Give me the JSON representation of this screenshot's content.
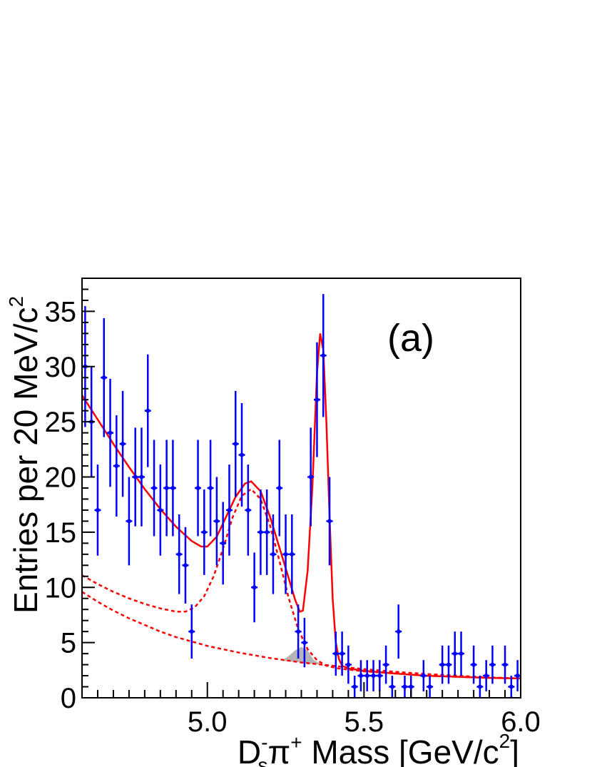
{
  "chart_data": {
    "type": "scatter",
    "panel_label": "(a)",
    "xlabel": {
      "main": "D",
      "sup": "-",
      "sub": "s",
      "pi": "π",
      "pi_sup": "+",
      "rest": " Mass [GeV/c",
      "rest_sup": "2",
      "close": "]"
    },
    "ylabel": {
      "main": "Entries per 20 MeV/c",
      "sup": "2"
    },
    "xlim": [
      4.6,
      6.0
    ],
    "ylim": [
      0,
      38
    ],
    "x_ticks": [
      5.0,
      5.5,
      6.0
    ],
    "x_tick_labels": [
      "5.0",
      "5.5",
      "6.0"
    ],
    "y_ticks": [
      0,
      5,
      10,
      15,
      20,
      25,
      30,
      35
    ],
    "y_tick_labels": [
      "0",
      "5",
      "10",
      "15",
      "20",
      "25",
      "30",
      "35"
    ],
    "grid": false,
    "colors": {
      "data": "#0000ff",
      "fit": "#ff0000",
      "shaded": "#b4b4b4",
      "axes": "#000000"
    },
    "series": [
      {
        "style": "points-with-errors",
        "points": [
          [
            4.61,
            30
          ],
          [
            4.63,
            25
          ],
          [
            4.65,
            17
          ],
          [
            4.67,
            29
          ],
          [
            4.69,
            24
          ],
          [
            4.71,
            21
          ],
          [
            4.73,
            23
          ],
          [
            4.75,
            16
          ],
          [
            4.77,
            20
          ],
          [
            4.79,
            20
          ],
          [
            4.81,
            26
          ],
          [
            4.83,
            19
          ],
          [
            4.85,
            17
          ],
          [
            4.87,
            19
          ],
          [
            4.89,
            19
          ],
          [
            4.91,
            13
          ],
          [
            4.93,
            12
          ],
          [
            4.95,
            6
          ],
          [
            4.97,
            19
          ],
          [
            4.99,
            15
          ],
          [
            5.01,
            19
          ],
          [
            5.03,
            16
          ],
          [
            5.05,
            14
          ],
          [
            5.07,
            17
          ],
          [
            5.09,
            23
          ],
          [
            5.11,
            22
          ],
          [
            5.13,
            17
          ],
          [
            5.15,
            10
          ],
          [
            5.17,
            15
          ],
          [
            5.19,
            15
          ],
          [
            5.21,
            13
          ],
          [
            5.23,
            19
          ],
          [
            5.25,
            13
          ],
          [
            5.27,
            13
          ],
          [
            5.29,
            6
          ],
          [
            5.31,
            5
          ],
          [
            5.33,
            20
          ],
          [
            5.35,
            27
          ],
          [
            5.37,
            31
          ],
          [
            5.39,
            16
          ],
          [
            5.41,
            4
          ],
          [
            5.43,
            4
          ],
          [
            5.45,
            3
          ],
          [
            5.47,
            1
          ],
          [
            5.49,
            2
          ],
          [
            5.51,
            2
          ],
          [
            5.53,
            2
          ],
          [
            5.55,
            2
          ],
          [
            5.57,
            3
          ],
          [
            5.59,
            1
          ],
          [
            5.61,
            6
          ],
          [
            5.63,
            1
          ],
          [
            5.65,
            1
          ],
          [
            5.69,
            2
          ],
          [
            5.71,
            1
          ],
          [
            5.75,
            3
          ],
          [
            5.77,
            3
          ],
          [
            5.79,
            4
          ],
          [
            5.81,
            4
          ],
          [
            5.85,
            3
          ],
          [
            5.87,
            1
          ],
          [
            5.89,
            2
          ],
          [
            5.91,
            3
          ],
          [
            5.95,
            3
          ],
          [
            5.97,
            1
          ],
          [
            5.99,
            2
          ]
        ]
      },
      {
        "style": "solid-line",
        "points": [
          [
            4.6,
            27.4
          ],
          [
            4.65,
            25.2
          ],
          [
            4.7,
            23.0
          ],
          [
            4.75,
            20.9
          ],
          [
            4.8,
            18.9
          ],
          [
            4.85,
            17.1
          ],
          [
            4.9,
            15.5
          ],
          [
            4.95,
            14.2
          ],
          [
            4.98,
            13.7
          ],
          [
            5.0,
            13.7
          ],
          [
            5.03,
            14.6
          ],
          [
            5.06,
            16.4
          ],
          [
            5.09,
            18.2
          ],
          [
            5.12,
            19.4
          ],
          [
            5.14,
            19.6
          ],
          [
            5.17,
            18.7
          ],
          [
            5.2,
            16.4
          ],
          [
            5.23,
            13.6
          ],
          [
            5.26,
            10.8
          ],
          [
            5.28,
            8.9
          ],
          [
            5.295,
            7.8
          ],
          [
            5.305,
            7.9
          ],
          [
            5.32,
            11.5
          ],
          [
            5.335,
            19.0
          ],
          [
            5.35,
            29.5
          ],
          [
            5.36,
            33.0
          ],
          [
            5.37,
            31.5
          ],
          [
            5.38,
            25.0
          ],
          [
            5.39,
            16.5
          ],
          [
            5.4,
            9.0
          ],
          [
            5.41,
            5.0
          ],
          [
            5.42,
            3.5
          ],
          [
            5.43,
            2.9
          ],
          [
            5.45,
            2.65
          ],
          [
            5.5,
            2.45
          ],
          [
            5.6,
            2.2
          ],
          [
            5.7,
            2.0
          ],
          [
            5.8,
            1.9
          ],
          [
            5.9,
            1.8
          ],
          [
            6.0,
            1.75
          ]
        ]
      },
      {
        "style": "dashed-line",
        "points": [
          [
            4.6,
            11.1
          ],
          [
            4.65,
            10.3
          ],
          [
            4.7,
            9.6
          ],
          [
            4.75,
            9.0
          ],
          [
            4.8,
            8.5
          ],
          [
            4.85,
            8.1
          ],
          [
            4.9,
            7.8
          ],
          [
            4.93,
            7.8
          ],
          [
            4.96,
            8.2
          ],
          [
            4.99,
            9.2
          ],
          [
            5.02,
            11.0
          ],
          [
            5.05,
            13.5
          ],
          [
            5.08,
            16.3
          ],
          [
            5.11,
            18.3
          ],
          [
            5.14,
            18.9
          ],
          [
            5.17,
            18.0
          ],
          [
            5.2,
            15.6
          ],
          [
            5.23,
            12.4
          ],
          [
            5.26,
            9.0
          ],
          [
            5.29,
            6.2
          ],
          [
            5.32,
            4.4
          ],
          [
            5.35,
            3.4
          ],
          [
            5.38,
            2.9
          ],
          [
            5.42,
            2.65
          ],
          [
            5.5,
            2.4
          ],
          [
            5.6,
            2.2
          ],
          [
            5.7,
            2.0
          ],
          [
            5.8,
            1.9
          ],
          [
            5.9,
            1.8
          ],
          [
            6.0,
            1.75
          ]
        ]
      },
      {
        "style": "dashed-line",
        "points": [
          [
            4.6,
            9.6
          ],
          [
            4.65,
            8.7
          ],
          [
            4.7,
            7.9
          ],
          [
            4.75,
            7.2
          ],
          [
            4.8,
            6.6
          ],
          [
            4.85,
            6.0
          ],
          [
            4.9,
            5.5
          ],
          [
            4.95,
            5.1
          ],
          [
            5.0,
            4.7
          ],
          [
            5.1,
            4.1
          ],
          [
            5.2,
            3.6
          ],
          [
            5.3,
            3.2
          ],
          [
            5.4,
            2.9
          ],
          [
            5.5,
            2.6
          ],
          [
            5.6,
            2.35
          ],
          [
            5.7,
            2.15
          ],
          [
            5.8,
            2.0
          ],
          [
            5.9,
            1.85
          ],
          [
            6.0,
            1.75
          ]
        ]
      },
      {
        "style": "shaded-area",
        "points": [
          [
            5.24,
            3.4
          ],
          [
            5.26,
            3.8
          ],
          [
            5.28,
            4.3
          ],
          [
            5.3,
            4.6
          ],
          [
            5.32,
            4.3
          ],
          [
            5.34,
            3.4
          ],
          [
            5.36,
            3.1
          ]
        ],
        "baseline": [
          [
            5.36,
            3.0
          ],
          [
            5.34,
            3.05
          ],
          [
            5.32,
            3.1
          ],
          [
            5.3,
            3.2
          ],
          [
            5.28,
            3.25
          ],
          [
            5.26,
            3.3
          ],
          [
            5.24,
            3.35
          ]
        ]
      }
    ]
  }
}
